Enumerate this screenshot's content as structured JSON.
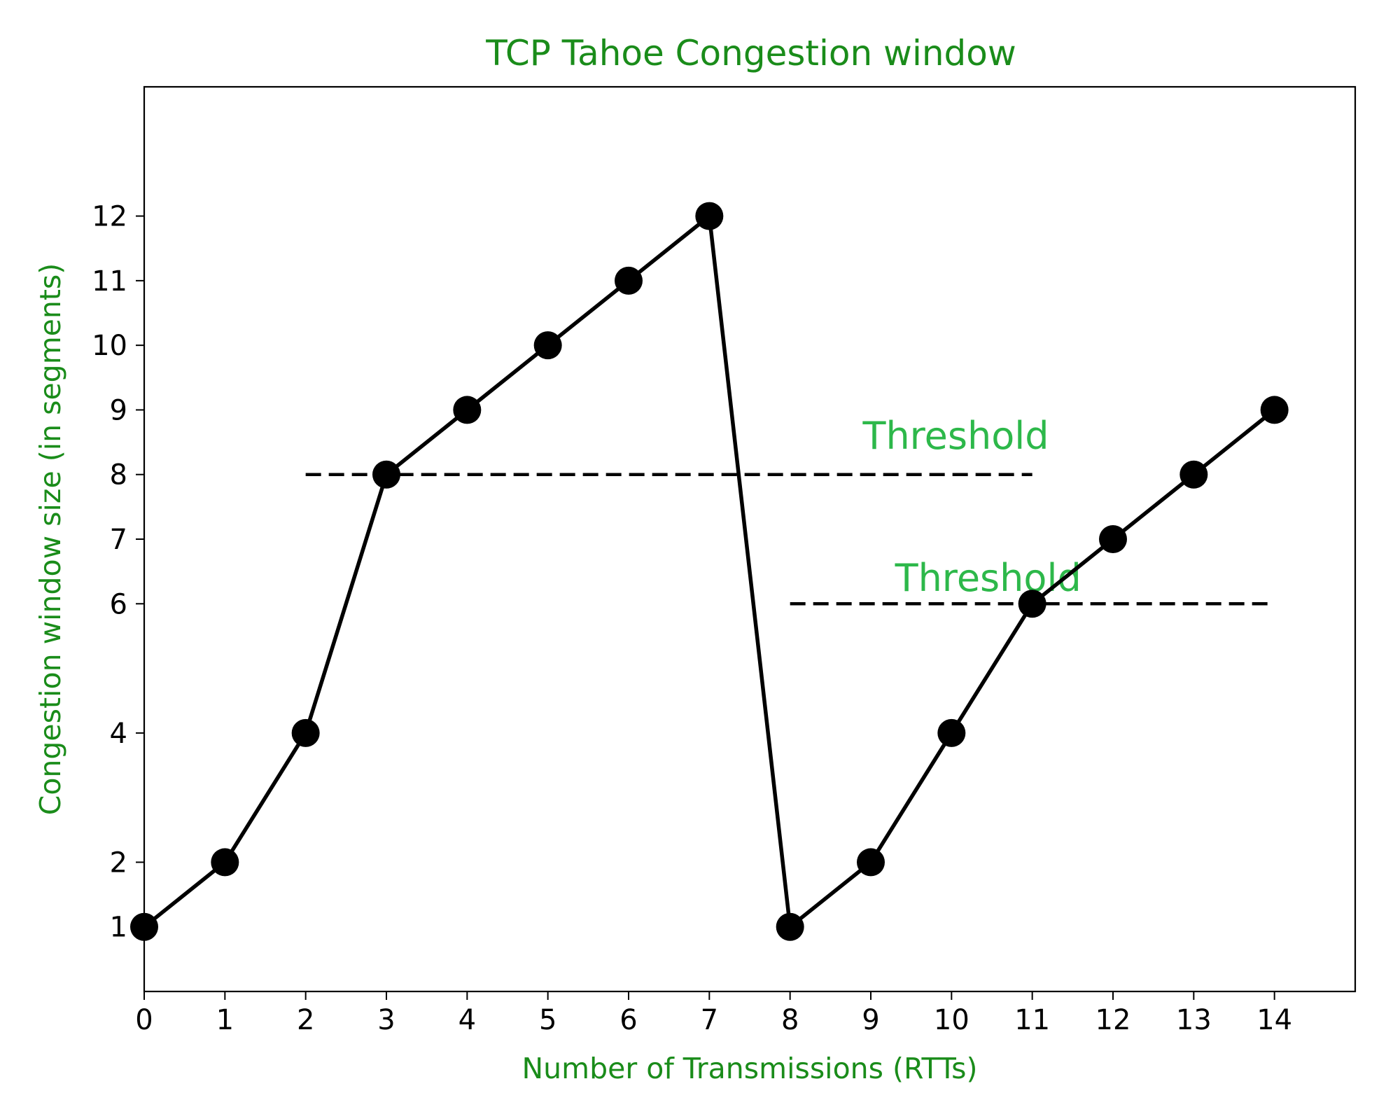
{
  "colors": {
    "title": "#1a8c1a",
    "axis_label": "#1a8c1a",
    "annotation": "#2db84a",
    "series": "#000000",
    "threshold_line": "#000000"
  },
  "chart_data": {
    "type": "line",
    "title": "TCP Tahoe Congestion window",
    "xlabel": "Number of Transmissions (RTTs)",
    "ylabel": "Congestion window size (in segments)",
    "xlim": [
      0,
      15
    ],
    "ylim": [
      0,
      14
    ],
    "xticks": [
      0,
      1,
      2,
      3,
      4,
      5,
      6,
      7,
      8,
      9,
      10,
      11,
      12,
      13,
      14
    ],
    "yticks": [
      1,
      2,
      4,
      6,
      7,
      8,
      9,
      10,
      11,
      12
    ],
    "grid": false,
    "series": [
      {
        "x": [
          0,
          1,
          2,
          3,
          4,
          5,
          6,
          7,
          8,
          9,
          10,
          11,
          12,
          13,
          14
        ],
        "y": [
          1,
          2,
          4,
          8,
          9,
          10,
          11,
          12,
          1,
          2,
          4,
          6,
          7,
          8,
          9
        ],
        "marker": "circle",
        "line": "solid"
      }
    ],
    "thresholds": [
      {
        "label": "Threshold",
        "y": 8,
        "x_start": 2,
        "x_end": 11,
        "label_x": 8.9,
        "label_y": 8.4
      },
      {
        "label": "Threshold",
        "y": 6,
        "x_start": 8,
        "x_end": 14,
        "label_x": 9.3,
        "label_y": 6.2
      }
    ]
  }
}
